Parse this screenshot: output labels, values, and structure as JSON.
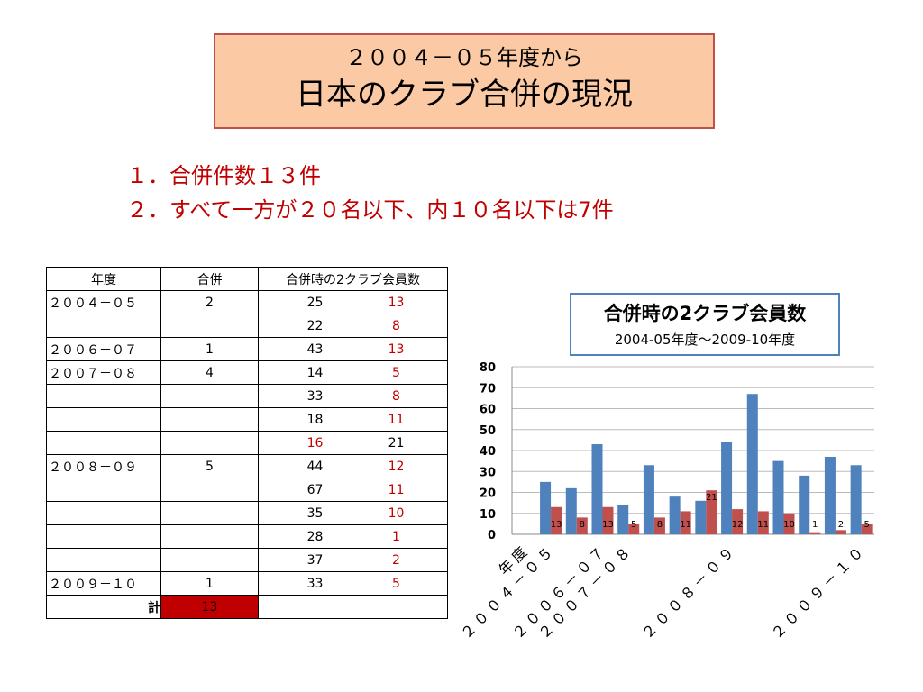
{
  "title": {
    "line1": "２００４－０５年度から",
    "line2": "日本のクラブ合併の現況"
  },
  "points": [
    "１．合併件数１３件",
    "２．すべて一方が２０名以下、内１０名以下は7件"
  ],
  "table": {
    "headers": {
      "year": "年度",
      "merge": "合併",
      "members": "合併時の2クラブ会員数"
    },
    "rows": [
      {
        "year": "２００４－０５",
        "merge": "2",
        "a": "25",
        "b": "13",
        "a_red": false,
        "b_red": true
      },
      {
        "year": "",
        "merge": "",
        "a": "22",
        "b": "8",
        "a_red": false,
        "b_red": true
      },
      {
        "year": "２００６－０７",
        "merge": "1",
        "a": "43",
        "b": "13",
        "a_red": false,
        "b_red": true
      },
      {
        "year": "２００７－０８",
        "merge": "4",
        "a": "14",
        "b": "5",
        "a_red": false,
        "b_red": true
      },
      {
        "year": "",
        "merge": "",
        "a": "33",
        "b": "8",
        "a_red": false,
        "b_red": true
      },
      {
        "year": "",
        "merge": "",
        "a": "18",
        "b": "11",
        "a_red": false,
        "b_red": true
      },
      {
        "year": "",
        "merge": "",
        "a": "16",
        "b": "21",
        "a_red": true,
        "b_red": false
      },
      {
        "year": "２００８－０９",
        "merge": "5",
        "a": "44",
        "b": "12",
        "a_red": false,
        "b_red": true
      },
      {
        "year": "",
        "merge": "",
        "a": "67",
        "b": "11",
        "a_red": false,
        "b_red": true
      },
      {
        "year": "",
        "merge": "",
        "a": "35",
        "b": "10",
        "a_red": false,
        "b_red": true
      },
      {
        "year": "",
        "merge": "",
        "a": "28",
        "b": "1",
        "a_red": false,
        "b_red": true
      },
      {
        "year": "",
        "merge": "",
        "a": "37",
        "b": "2",
        "a_red": false,
        "b_red": true
      },
      {
        "year": "２００９－１０",
        "merge": "1",
        "a": "33",
        "b": "5",
        "a_red": false,
        "b_red": true
      }
    ],
    "total_label": "計",
    "total_value": "13"
  },
  "chart_title": {
    "line1": "合併時の2クラブ会員数",
    "line2": "2004-05年度～2009-10年度"
  },
  "chart_data": {
    "type": "bar",
    "categories": [
      "年度",
      "２００４－０５",
      "",
      "２００６－０７",
      "２００７－０８",
      "",
      "",
      "",
      "２００８－０９",
      "",
      "",
      "",
      "",
      "２００９－１０"
    ],
    "series": [
      {
        "values": [
          null,
          25,
          22,
          43,
          14,
          33,
          18,
          16,
          44,
          67,
          35,
          28,
          37,
          33
        ],
        "color": "#4f81bd"
      },
      {
        "values": [
          null,
          13,
          8,
          13,
          5,
          8,
          11,
          21,
          12,
          11,
          10,
          1,
          2,
          5
        ],
        "color": "#c0504d"
      }
    ],
    "ylim": [
      0,
      80
    ],
    "yticks": [
      "0",
      "10",
      "20",
      "30",
      "40",
      "50",
      "60",
      "70",
      "80"
    ],
    "grid": true
  }
}
